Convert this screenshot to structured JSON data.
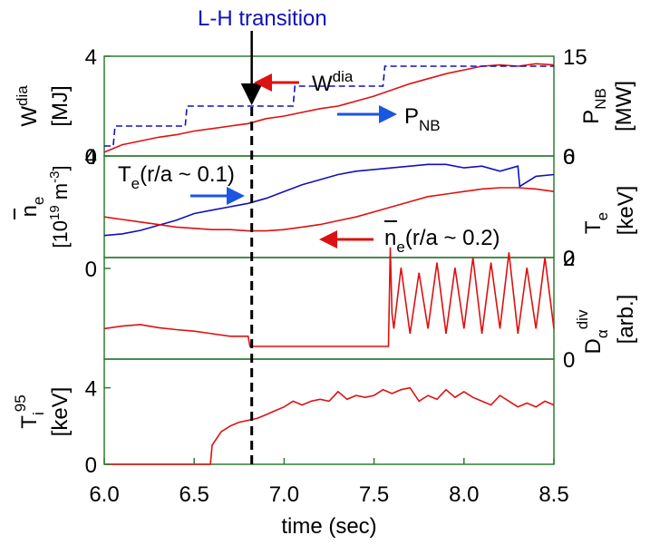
{
  "annotation": {
    "transition_label": "L-H transition",
    "transition_time": 6.82,
    "wdia_label": "W",
    "wdia_sup": "dia",
    "pnb_label": "P",
    "pnb_sub": "NB",
    "te_label": "T",
    "te_sub": "e",
    "te_rest": "(r/a ~ 0.1)",
    "ne_label": "n",
    "ne_sub": "e",
    "ne_rest": "(r/a ~ 0.2)"
  },
  "colors": {
    "red": "#dd1111",
    "blue": "#1111bb",
    "axis_frame": "#2e7d32",
    "arrow_blue": "#1a56e0"
  },
  "chart_data": [
    {
      "type": "line",
      "panel": "top",
      "ylabel_left": "W dia [MJ]",
      "ylim_left": [
        0,
        4
      ],
      "yticks_left": [
        "0",
        "4"
      ],
      "ylabel_right": "P NB [MW]",
      "ylim_right": [
        0,
        15
      ],
      "yticks_right": [
        "0",
        "15"
      ],
      "series": [
        {
          "name": "W dia",
          "axis": "left",
          "color": "red",
          "x": [
            6.0,
            6.05,
            6.1,
            6.2,
            6.3,
            6.4,
            6.5,
            6.6,
            6.7,
            6.8,
            6.9,
            7.0,
            7.1,
            7.2,
            7.3,
            7.4,
            7.5,
            7.6,
            7.7,
            7.8,
            7.9,
            8.0,
            8.1,
            8.2,
            8.3,
            8.4,
            8.5
          ],
          "y": [
            0.15,
            0.3,
            0.45,
            0.6,
            0.75,
            0.85,
            1.0,
            1.1,
            1.2,
            1.3,
            1.5,
            1.6,
            1.75,
            1.9,
            2.0,
            2.2,
            2.4,
            2.65,
            2.9,
            3.1,
            3.3,
            3.45,
            3.6,
            3.65,
            3.6,
            3.7,
            3.65
          ]
        },
        {
          "name": "P NB",
          "axis": "right",
          "color": "blue",
          "style": "dashed",
          "x": [
            6.0,
            6.05,
            6.06,
            6.45,
            6.46,
            7.05,
            7.06,
            7.55,
            7.56,
            8.5
          ],
          "y": [
            1.5,
            1.5,
            4.5,
            4.5,
            7.5,
            7.5,
            10.5,
            10.5,
            13.5,
            13.5
          ]
        }
      ]
    },
    {
      "type": "line",
      "panel": "second",
      "ylabel_left": "n e [10^19 m^-3]",
      "ylim_left": [
        0,
        4
      ],
      "yticks_left": [
        "4"
      ],
      "ylabel_right": "T e [keV]",
      "ylim_right": [
        0,
        6
      ],
      "yticks_right": [
        "6",
        "0"
      ],
      "series": [
        {
          "name": "T e (r/a ~ 0.1)",
          "axis": "right",
          "color": "blue",
          "x": [
            6.0,
            6.1,
            6.2,
            6.3,
            6.4,
            6.5,
            6.6,
            6.7,
            6.8,
            6.9,
            7.0,
            7.1,
            7.2,
            7.3,
            7.4,
            7.5,
            7.6,
            7.7,
            7.8,
            7.9,
            8.0,
            8.1,
            8.2,
            8.3,
            8.31,
            8.4,
            8.5
          ],
          "y": [
            1.3,
            1.4,
            1.6,
            1.9,
            2.2,
            2.6,
            2.8,
            3.0,
            3.2,
            3.5,
            3.9,
            4.3,
            4.6,
            4.9,
            5.1,
            5.2,
            5.3,
            5.4,
            5.5,
            5.5,
            5.3,
            5.4,
            5.1,
            5.4,
            4.2,
            4.8,
            4.9
          ]
        },
        {
          "name": "n e (r/a ~ 0.2)",
          "axis": "left",
          "color": "red",
          "x": [
            6.0,
            6.1,
            6.2,
            6.3,
            6.4,
            6.5,
            6.6,
            6.7,
            6.8,
            6.9,
            7.0,
            7.1,
            7.2,
            7.3,
            7.4,
            7.5,
            7.6,
            7.7,
            7.8,
            7.9,
            8.0,
            8.1,
            8.2,
            8.3,
            8.4,
            8.5
          ],
          "y": [
            1.6,
            1.5,
            1.4,
            1.3,
            1.2,
            1.15,
            1.1,
            1.1,
            1.05,
            1.05,
            1.1,
            1.2,
            1.3,
            1.45,
            1.6,
            1.8,
            2.0,
            2.2,
            2.4,
            2.5,
            2.6,
            2.7,
            2.75,
            2.75,
            2.7,
            2.6
          ]
        }
      ]
    },
    {
      "type": "line",
      "panel": "third",
      "yticks_left": [
        "0"
      ],
      "ylabel_right": "D α div [arb.]",
      "ylim_right": [
        0,
        2
      ],
      "yticks_right": [
        "2",
        "0"
      ],
      "series": [
        {
          "name": "D α div",
          "axis": "right",
          "color": "red",
          "x": [
            6.0,
            6.1,
            6.2,
            6.3,
            6.4,
            6.5,
            6.6,
            6.7,
            6.8,
            6.81,
            7.0,
            7.2,
            7.4,
            7.58,
            7.59,
            7.6,
            7.61,
            7.65,
            7.7,
            7.75,
            7.8,
            7.85,
            7.9,
            7.95,
            8.0,
            8.05,
            8.1,
            8.15,
            8.2,
            8.25,
            8.3,
            8.35,
            8.4,
            8.45,
            8.5
          ],
          "y": [
            0.6,
            0.65,
            0.68,
            0.62,
            0.58,
            0.55,
            0.5,
            0.45,
            0.45,
            0.25,
            0.25,
            0.25,
            0.25,
            0.25,
            2.2,
            0.9,
            0.6,
            1.8,
            0.5,
            1.7,
            0.6,
            1.9,
            0.5,
            1.8,
            0.6,
            2.0,
            0.5,
            1.9,
            0.6,
            2.1,
            0.5,
            1.8,
            0.6,
            2.0,
            0.6
          ]
        }
      ]
    },
    {
      "type": "line",
      "panel": "bottom",
      "xlabel": "time (sec)",
      "xlim": [
        6.0,
        8.5
      ],
      "xticks": [
        "6.0",
        "6.5",
        "7.0",
        "7.5",
        "8.0",
        "8.5"
      ],
      "ylabel_left": "T i 95 [keV]",
      "ylim_left": [
        0,
        5.5
      ],
      "yticks_left": [
        "0",
        "4"
      ],
      "series": [
        {
          "name": "T i 95",
          "axis": "left",
          "color": "red",
          "x": [
            6.0,
            6.59,
            6.6,
            6.65,
            6.7,
            6.75,
            6.8,
            6.85,
            6.9,
            6.95,
            7.0,
            7.05,
            7.1,
            7.15,
            7.2,
            7.25,
            7.3,
            7.35,
            7.4,
            7.45,
            7.5,
            7.55,
            7.6,
            7.65,
            7.7,
            7.75,
            7.8,
            7.85,
            7.9,
            7.95,
            8.0,
            8.05,
            8.1,
            8.15,
            8.2,
            8.25,
            8.3,
            8.35,
            8.4,
            8.45,
            8.5
          ],
          "y": [
            0,
            0,
            1.0,
            1.7,
            2.0,
            2.2,
            2.3,
            2.4,
            2.6,
            2.8,
            3.0,
            3.3,
            3.1,
            3.3,
            3.4,
            3.3,
            3.8,
            3.4,
            3.6,
            3.5,
            3.6,
            3.9,
            3.7,
            3.9,
            4.0,
            3.3,
            3.6,
            3.4,
            3.9,
            3.5,
            3.8,
            3.5,
            3.3,
            3.1,
            3.6,
            3.3,
            3.0,
            3.2,
            3.0,
            3.3,
            3.1
          ]
        }
      ]
    }
  ]
}
